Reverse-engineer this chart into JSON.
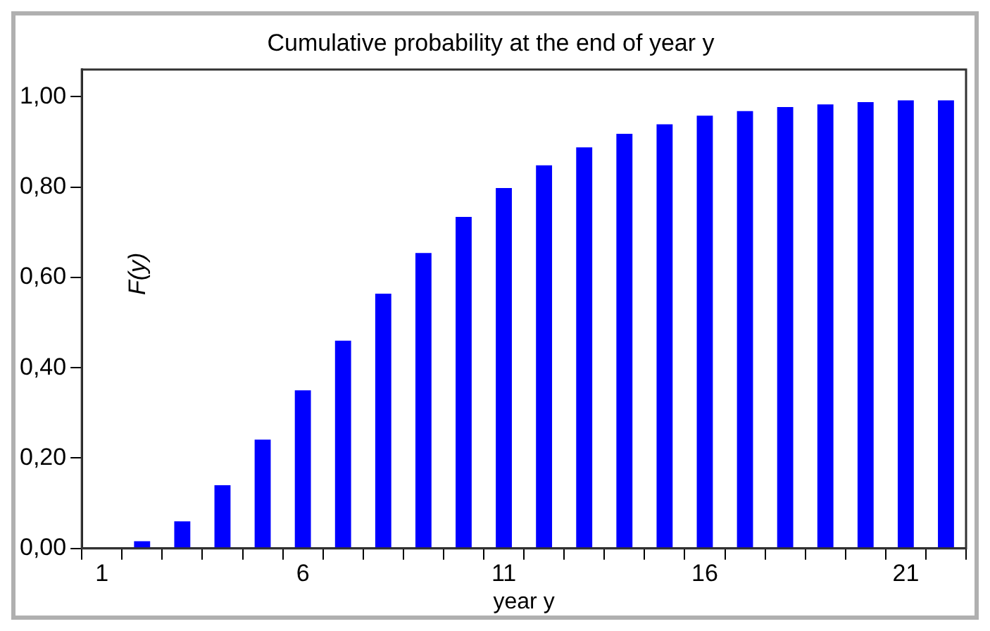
{
  "chart_data": {
    "type": "bar",
    "title": "Cumulative probability at the end of year y",
    "xlabel": "year y",
    "ylabel": "F(y)",
    "categories": [
      "1",
      null,
      null,
      null,
      null,
      "6",
      null,
      null,
      null,
      null,
      "11",
      null,
      null,
      null,
      null,
      "16",
      null,
      null,
      null,
      null,
      "21",
      null
    ],
    "values": [
      0,
      0.016,
      0.06,
      0.14,
      0.241,
      0.35,
      0.46,
      0.564,
      0.654,
      0.734,
      0.798,
      0.848,
      0.888,
      0.918,
      0.939,
      0.958,
      0.968,
      0.977,
      0.983,
      0.988,
      0.992,
      0.992
    ],
    "color": "#0000ff",
    "ylim": [
      0,
      1.06
    ],
    "yticks": [
      {
        "value": 0,
        "label": "0,00"
      },
      {
        "value": 0.2,
        "label": "0,20"
      },
      {
        "value": 0.4,
        "label": "0,40"
      },
      {
        "value": 0.6,
        "label": "0,60"
      },
      {
        "value": 0.8,
        "label": "0,80"
      },
      {
        "value": 1,
        "label": "1,00"
      }
    ],
    "grid": false,
    "legend": false
  }
}
